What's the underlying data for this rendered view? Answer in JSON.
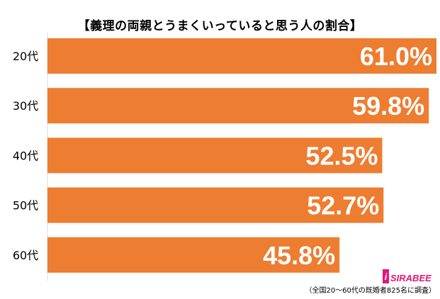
{
  "chart_data": {
    "type": "bar",
    "orientation": "horizontal",
    "title": "【義理の両親とうまくいっていると思う人の割合】",
    "categories": [
      "20代",
      "30代",
      "40代",
      "50代",
      "60代"
    ],
    "values": [
      61.0,
      59.8,
      52.5,
      52.7,
      45.8
    ],
    "value_labels": [
      "61.0%",
      "59.8%",
      "52.5%",
      "52.7%",
      "45.8%"
    ],
    "bar_color": "#ed7d31",
    "label_color": "#ffffff",
    "xlim": [
      0,
      61.0
    ],
    "grid": false,
    "legend": "none"
  },
  "source_note": "（全国20～60代の既婚者825名に調査）",
  "logo_text": "SIRABEE"
}
